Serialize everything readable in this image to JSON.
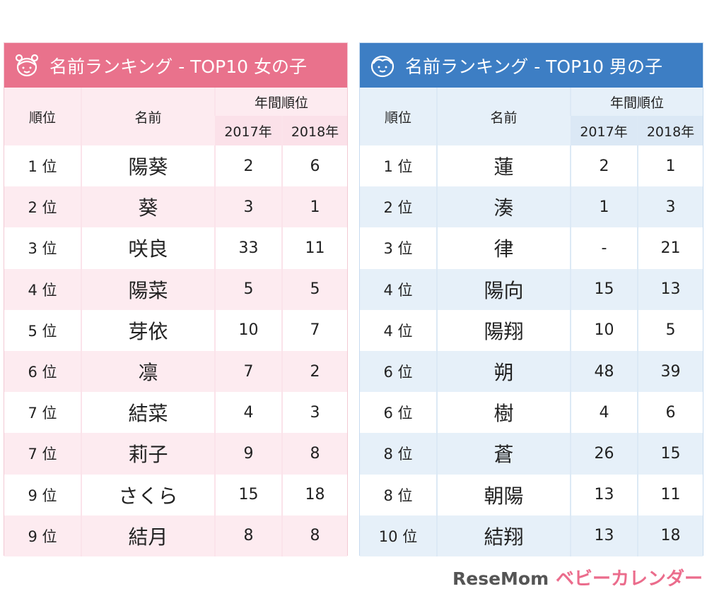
{
  "colors": {
    "girls_accent": "#e9728c",
    "boys_accent": "#3d7ec4"
  },
  "girls": {
    "icon": "girl-face-icon",
    "title": "名前ランキング - TOP10 女の子",
    "headers": {
      "rank": "順位",
      "name": "名前",
      "annual": "年間順位",
      "y2017": "2017年",
      "y2018": "2018年"
    },
    "rows": [
      {
        "rank": "1 位",
        "name": "陽葵",
        "y2017": "2",
        "y2018": "6"
      },
      {
        "rank": "2 位",
        "name": "葵",
        "y2017": "3",
        "y2018": "1"
      },
      {
        "rank": "3 位",
        "name": "咲良",
        "y2017": "33",
        "y2018": "11"
      },
      {
        "rank": "4 位",
        "name": "陽菜",
        "y2017": "5",
        "y2018": "5"
      },
      {
        "rank": "5 位",
        "name": "芽依",
        "y2017": "10",
        "y2018": "7"
      },
      {
        "rank": "6 位",
        "name": "凛",
        "y2017": "7",
        "y2018": "2"
      },
      {
        "rank": "7 位",
        "name": "結菜",
        "y2017": "4",
        "y2018": "3"
      },
      {
        "rank": "7 位",
        "name": "莉子",
        "y2017": "9",
        "y2018": "8"
      },
      {
        "rank": "9 位",
        "name": "さくら",
        "y2017": "15",
        "y2018": "18"
      },
      {
        "rank": "9 位",
        "name": "結月",
        "y2017": "8",
        "y2018": "8"
      }
    ]
  },
  "boys": {
    "icon": "boy-face-icon",
    "title": "名前ランキング - TOP10 男の子",
    "headers": {
      "rank": "順位",
      "name": "名前",
      "annual": "年間順位",
      "y2017": "2017年",
      "y2018": "2018年"
    },
    "rows": [
      {
        "rank": "1 位",
        "name": "蓮",
        "y2017": "2",
        "y2018": "1"
      },
      {
        "rank": "2 位",
        "name": "湊",
        "y2017": "1",
        "y2018": "3"
      },
      {
        "rank": "3 位",
        "name": "律",
        "y2017": "-",
        "y2018": "21"
      },
      {
        "rank": "4 位",
        "name": "陽向",
        "y2017": "15",
        "y2018": "13"
      },
      {
        "rank": "4 位",
        "name": "陽翔",
        "y2017": "10",
        "y2018": "5"
      },
      {
        "rank": "6 位",
        "name": "朔",
        "y2017": "48",
        "y2018": "39"
      },
      {
        "rank": "6 位",
        "name": "樹",
        "y2017": "4",
        "y2018": "6"
      },
      {
        "rank": "8 位",
        "name": "蒼",
        "y2017": "26",
        "y2018": "15"
      },
      {
        "rank": "8 位",
        "name": "朝陽",
        "y2017": "13",
        "y2018": "11"
      },
      {
        "rank": "10 位",
        "name": "結翔",
        "y2017": "13",
        "y2018": "18"
      }
    ]
  },
  "logo": {
    "brand": "ベビーカレンダー",
    "watermark": "ReseMom"
  }
}
